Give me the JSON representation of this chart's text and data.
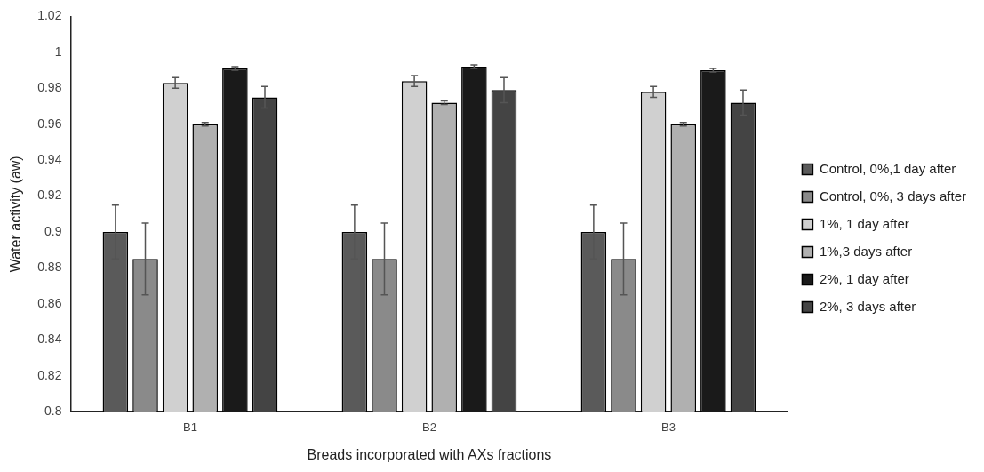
{
  "chart_data": {
    "type": "bar",
    "xlabel": "Breads incorporated with AXs fractions",
    "ylabel": "Water activity (aw)",
    "categories": [
      "B1",
      "B2",
      "B3"
    ],
    "series": [
      {
        "name": "Control, 0%,1 day after",
        "color": "#5a5a5a",
        "values": [
          0.9,
          0.9,
          0.9
        ],
        "errors": [
          0.015,
          0.015,
          0.015
        ]
      },
      {
        "name": "Control, 0%, 3 days after",
        "color": "#8a8a8a",
        "values": [
          0.885,
          0.885,
          0.885
        ],
        "errors": [
          0.02,
          0.02,
          0.02
        ]
      },
      {
        "name": "1%, 1 day after",
        "color": "#d0d0d0",
        "values": [
          0.983,
          0.984,
          0.978
        ],
        "errors": [
          0.003,
          0.003,
          0.003
        ]
      },
      {
        "name": "1%,3 days after",
        "color": "#b0b0b0",
        "values": [
          0.96,
          0.972,
          0.96
        ],
        "errors": [
          0.001,
          0.001,
          0.001
        ]
      },
      {
        "name": "2%, 1 day after",
        "color": "#1a1a1a",
        "values": [
          0.991,
          0.992,
          0.99
        ],
        "errors": [
          0.001,
          0.001,
          0.001
        ]
      },
      {
        "name": "2%, 3 days after",
        "color": "#444444",
        "values": [
          0.975,
          0.979,
          0.972
        ],
        "errors": [
          0.006,
          0.007,
          0.007
        ]
      }
    ],
    "ylim": [
      0.8,
      1.02
    ],
    "yticks": [
      0.8,
      0.82,
      0.84,
      0.86,
      0.88,
      0.9,
      0.92,
      0.94,
      0.96,
      0.98,
      1,
      1.02
    ],
    "grid": false,
    "legend": "right"
  }
}
